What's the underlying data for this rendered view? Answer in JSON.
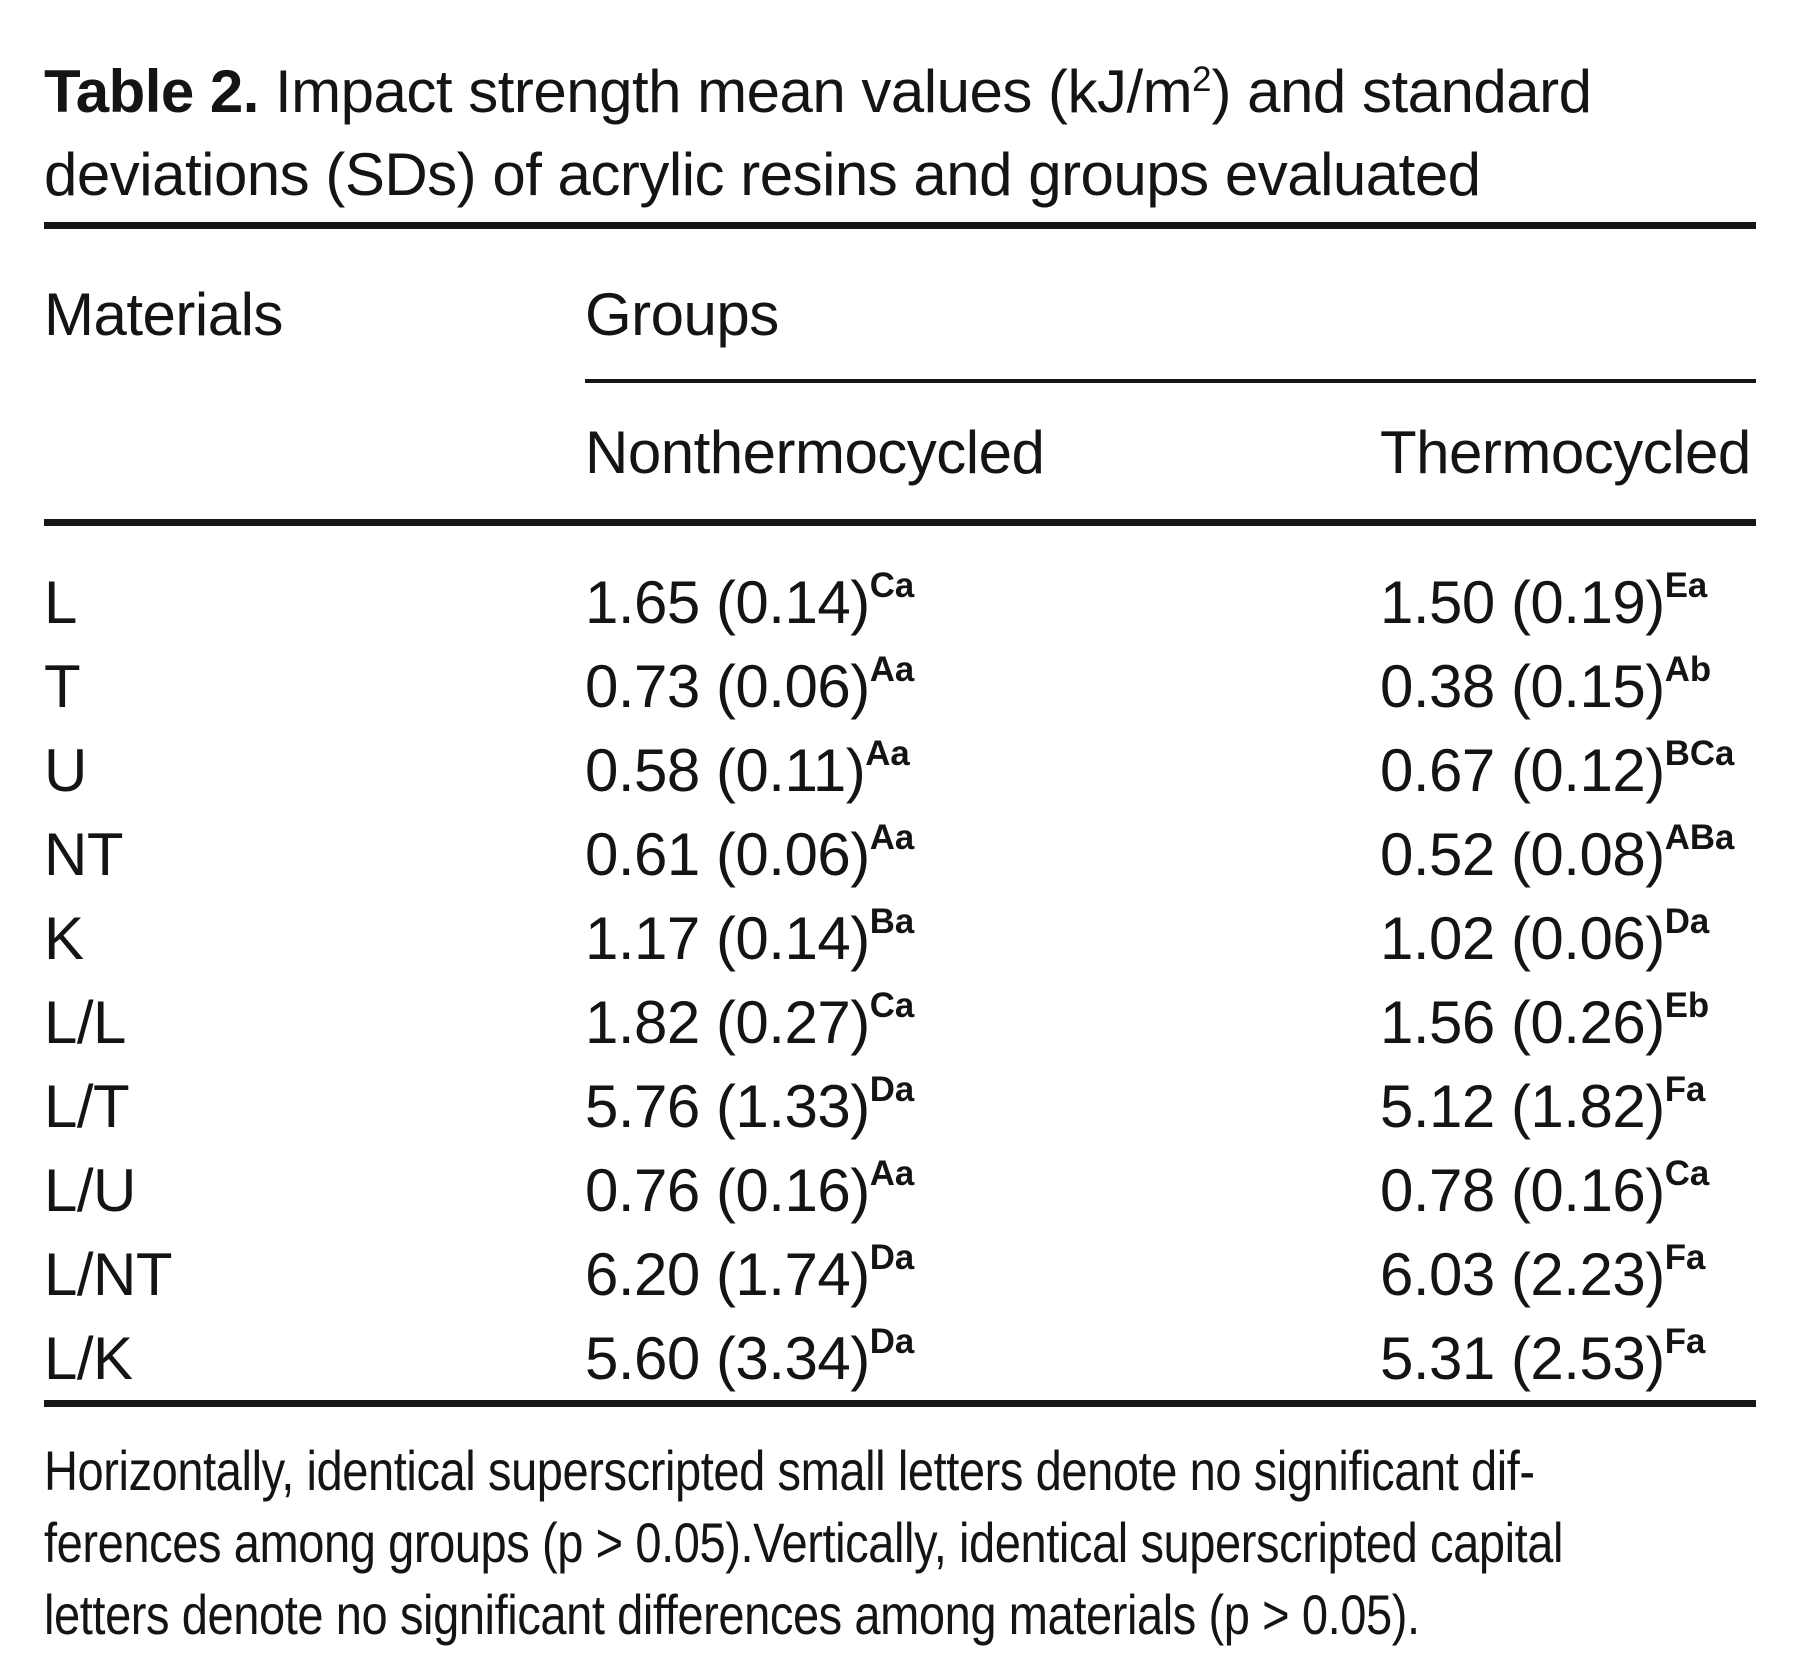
{
  "title": {
    "label": "Table 2.",
    "line1_pre_sup": "Impact strength mean values (kJ/m",
    "sup": "2",
    "line1_post_sup": ") and standard",
    "line2": "deviations (SDs) of acrylic resins and groups evaluated"
  },
  "header": {
    "materials": "Materials",
    "groups": "Groups",
    "subcolumns": [
      "Nonthermocycled",
      "Thermocycled"
    ]
  },
  "rows": [
    {
      "material": "L",
      "nonthermocycled": {
        "value": "1.65 (0.14)",
        "sup": "Ca"
      },
      "thermocycled": {
        "value": "1.50 (0.19)",
        "sup": "Ea"
      }
    },
    {
      "material": "T",
      "nonthermocycled": {
        "value": "0.73 (0.06)",
        "sup": "Aa"
      },
      "thermocycled": {
        "value": "0.38 (0.15)",
        "sup": "Ab"
      }
    },
    {
      "material": "U",
      "nonthermocycled": {
        "value": "0.58 (0.11)",
        "sup": "Aa"
      },
      "thermocycled": {
        "value": "0.67 (0.12)",
        "sup": "BCa"
      }
    },
    {
      "material": "NT",
      "nonthermocycled": {
        "value": "0.61 (0.06)",
        "sup": "Aa"
      },
      "thermocycled": {
        "value": "0.52 (0.08)",
        "sup": "ABa"
      }
    },
    {
      "material": "K",
      "nonthermocycled": {
        "value": "1.17 (0.14)",
        "sup": "Ba"
      },
      "thermocycled": {
        "value": "1.02 (0.06)",
        "sup": "Da"
      }
    },
    {
      "material": "L/L",
      "nonthermocycled": {
        "value": "1.82 (0.27)",
        "sup": "Ca"
      },
      "thermocycled": {
        "value": "1.56 (0.26)",
        "sup": "Eb"
      }
    },
    {
      "material": "L/T",
      "nonthermocycled": {
        "value": "5.76 (1.33)",
        "sup": "Da"
      },
      "thermocycled": {
        "value": "5.12 (1.82)",
        "sup": "Fa"
      }
    },
    {
      "material": "L/U",
      "nonthermocycled": {
        "value": "0.76 (0.16)",
        "sup": "Aa"
      },
      "thermocycled": {
        "value": "0.78 (0.16)",
        "sup": "Ca"
      }
    },
    {
      "material": "L/NT",
      "nonthermocycled": {
        "value": "6.20 (1.74)",
        "sup": "Da"
      },
      "thermocycled": {
        "value": "6.03 (2.23)",
        "sup": "Fa"
      }
    },
    {
      "material": "L/K",
      "nonthermocycled": {
        "value": "5.60 (3.34)",
        "sup": "Da"
      },
      "thermocycled": {
        "value": "5.31 (2.53)",
        "sup": "Fa"
      }
    }
  ],
  "footnote_lines": [
    "Horizontally, identical superscripted small letters denote no significant dif-",
    "ferences among groups (p > 0.05).Vertically, identical superscripted capital",
    "letters denote no significant differences among materials (p > 0.05)."
  ],
  "colors": {
    "text": "#141414",
    "rule": "#161616",
    "background": "#ffffff"
  }
}
